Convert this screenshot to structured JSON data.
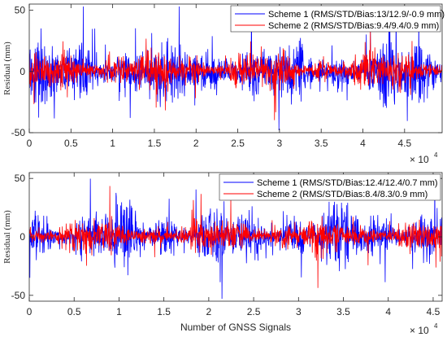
{
  "chart_data": [
    {
      "type": "line",
      "ylabel": "Residual (mm)",
      "xlabel": "",
      "ylim": [
        -50,
        55
      ],
      "xlim": [
        0,
        4.95
      ],
      "x_multiplier": "× 10",
      "x_multiplier_exp": "4",
      "x_ticks": [
        "0",
        "0.5",
        "1",
        "1.5",
        "2",
        "2.5",
        "3",
        "3.5",
        "4",
        "4.5"
      ],
      "y_ticks": [
        "-50",
        "0",
        "50"
      ],
      "legend_position": "top-right",
      "series": [
        {
          "name": "Scheme 1 (RMS/STD/Bias:13/12.9/-0.9 mm)",
          "color": "#0000ff",
          "rms": 13,
          "std": 12.9,
          "bias": -0.9
        },
        {
          "name": "Scheme 2 (RMS/STD/Bias:9.4/9.4/0.9 mm)",
          "color": "#ff0000",
          "rms": 9.4,
          "std": 9.4,
          "bias": 0.9
        }
      ]
    },
    {
      "type": "line",
      "ylabel": "Residual (mm)",
      "xlabel": "Number of GNSS Signals",
      "ylim": [
        -55,
        55
      ],
      "xlim": [
        0,
        4.6
      ],
      "x_multiplier": "× 10",
      "x_multiplier_exp": "4",
      "x_ticks": [
        "0",
        "0.5",
        "1",
        "1.5",
        "2",
        "2.5",
        "3",
        "3.5",
        "4",
        "4.5"
      ],
      "y_ticks": [
        "-50",
        "0",
        "50"
      ],
      "legend_position": "top-right",
      "series": [
        {
          "name": "Scheme 1 (RMS/STD/Bias:12.4/12.4/0.7 mm)",
          "color": "#0000ff",
          "rms": 12.4,
          "std": 12.4,
          "bias": 0.7
        },
        {
          "name": "Scheme 2 (RMS/STD/Bias:8.4/8.3/0.9 mm)",
          "color": "#ff0000",
          "rms": 8.4,
          "std": 8.3,
          "bias": 0.9
        }
      ]
    }
  ]
}
